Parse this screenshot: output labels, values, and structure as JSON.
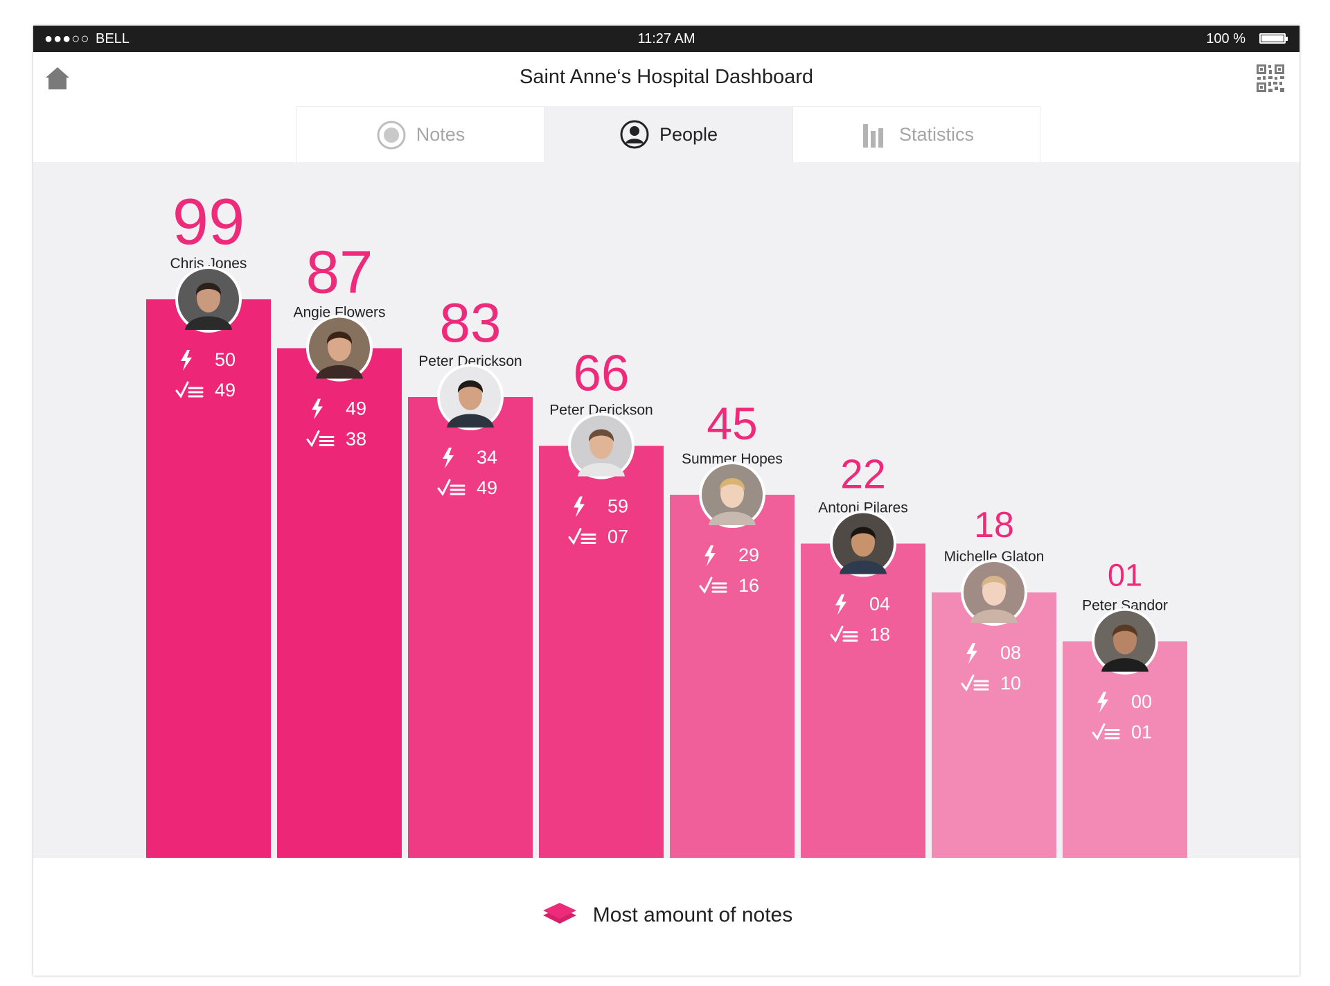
{
  "status_bar": {
    "signal": "●●●○○",
    "carrier": "BELL",
    "time": "11:27 AM",
    "battery": "100 %"
  },
  "header": {
    "title": "Saint Anne‘s Hospital Dashboard",
    "home_icon": "home-icon",
    "qr_icon": "qr-code-icon"
  },
  "tabs": [
    {
      "label": "Notes",
      "icon": "record-icon",
      "active": false
    },
    {
      "label": "People",
      "icon": "person-icon",
      "active": true
    },
    {
      "label": "Statistics",
      "icon": "bar-chart-icon",
      "active": false
    }
  ],
  "colors": {
    "accent": "#ee2a7b",
    "bars": [
      "#ee2677",
      "#ee2677",
      "#ef3b84",
      "#ef3b84",
      "#f15f9a",
      "#f15f9a",
      "#f38ab5",
      "#f38ab5"
    ],
    "chart_background": "#f1f1f3"
  },
  "chart_data": {
    "type": "bar",
    "categories": [
      "Chris Jones",
      "Angie Flowers",
      "Peter Derickson",
      "Peter Derickson",
      "Summer Hopes",
      "Antoni Pilares",
      "Michelle Glaton",
      "Peter Sandor"
    ],
    "values": [
      "99",
      "87",
      "83",
      "66",
      "45",
      "22",
      "18",
      "01"
    ],
    "series": [
      {
        "icon": "lightning-icon",
        "values": [
          "50",
          "49",
          "34",
          "59",
          "29",
          "04",
          "08",
          "00"
        ]
      },
      {
        "icon": "checklist-icon",
        "values": [
          "49",
          "38",
          "49",
          "07",
          "16",
          "18",
          "10",
          "01"
        ]
      }
    ],
    "legend": "bottom-center"
  },
  "legend": {
    "label": "Most amount of notes",
    "icon": "stack-icon"
  }
}
